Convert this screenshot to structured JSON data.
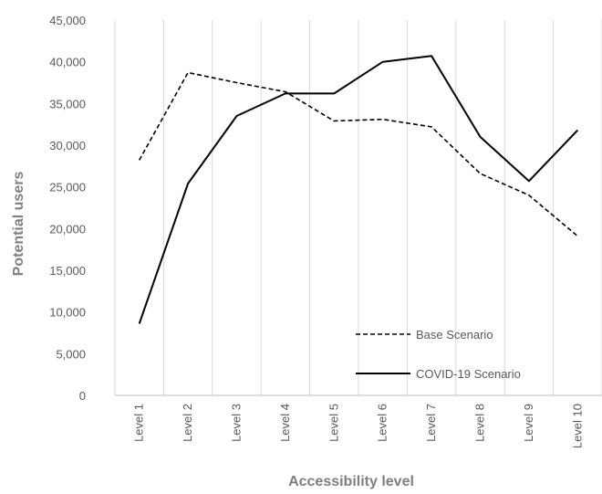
{
  "chart_data": {
    "type": "line",
    "title": "",
    "xlabel": "Accessibility level",
    "ylabel": "Potential users",
    "categories": [
      "Level 1",
      "Level 2",
      "Level 3",
      "Level 4",
      "Level 5",
      "Level 6",
      "Level 7",
      "Level 8",
      "Level 9",
      "Level 10"
    ],
    "ylim": [
      0,
      45000
    ],
    "yticks": [
      0,
      5000,
      10000,
      15000,
      20000,
      25000,
      30000,
      35000,
      40000,
      45000
    ],
    "ytick_labels": [
      "0",
      "5,000",
      "10,000",
      "15,000",
      "20,000",
      "25,000",
      "30,000",
      "35,000",
      "40,000",
      "45,000"
    ],
    "grid": "vertical",
    "legend_position": "bottom-right inside plot",
    "series": [
      {
        "name": "Base Scenario",
        "style": "dashed",
        "color": "#000000",
        "values": [
          28200,
          38700,
          37500,
          36400,
          32900,
          33100,
          32200,
          26600,
          24000,
          19100
        ]
      },
      {
        "name": "COVID-19 Scenario",
        "style": "solid",
        "color": "#000000",
        "values": [
          8600,
          25400,
          33500,
          36200,
          36200,
          40000,
          40700,
          31000,
          25700,
          31800
        ]
      }
    ]
  }
}
